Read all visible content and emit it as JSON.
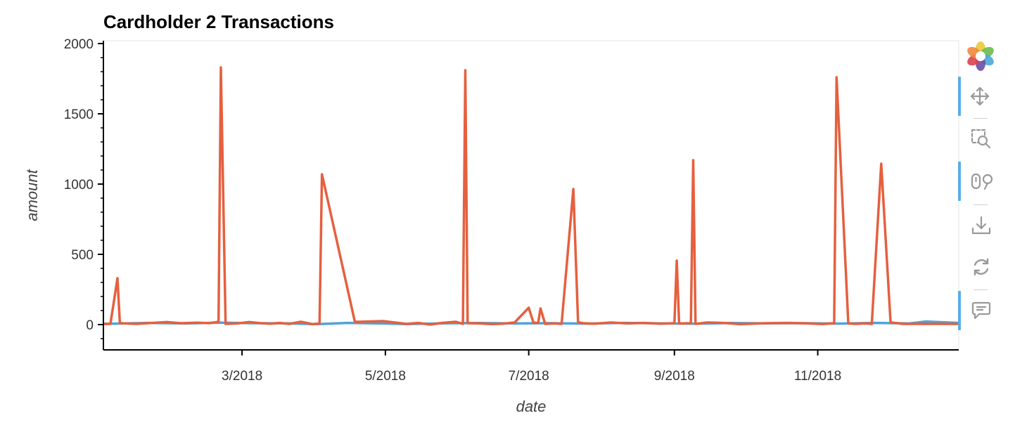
{
  "chart_data": {
    "type": "line",
    "title": "Cardholder 2 Transactions",
    "xlabel": "date",
    "ylabel": "amount",
    "x_ticks": [
      "3/2018",
      "5/2018",
      "7/2018",
      "9/2018",
      "11/2018"
    ],
    "y_ticks": [
      "0",
      "500",
      "1000",
      "1500",
      "2000"
    ],
    "xlim": [
      "2018-01-01",
      "2018-12-31"
    ],
    "ylim": [
      -180,
      2020
    ],
    "grid": false,
    "legend": "none",
    "series": [
      {
        "color": "#4fa3d8",
        "x": [
          "2018-01-01",
          "2018-01-20",
          "2018-02-05",
          "2018-02-20",
          "2018-03-05",
          "2018-03-20",
          "2018-04-02",
          "2018-04-15",
          "2018-04-30",
          "2018-05-10",
          "2018-05-25",
          "2018-06-10",
          "2018-06-25",
          "2018-07-10",
          "2018-07-25",
          "2018-08-10",
          "2018-08-25",
          "2018-09-10",
          "2018-09-25",
          "2018-10-10",
          "2018-10-25",
          "2018-11-10",
          "2018-11-25",
          "2018-12-10",
          "2018-12-17",
          "2018-12-31"
        ],
        "values": [
          5,
          12,
          8,
          14,
          10,
          9,
          3,
          12,
          8,
          4,
          9,
          11,
          8,
          10,
          7,
          12,
          9,
          6,
          11,
          9,
          10,
          7,
          12,
          8,
          22,
          12
        ]
      },
      {
        "color": "#e5603f",
        "x": [
          "2018-01-01",
          "2018-01-04",
          "2018-01-07",
          "2018-01-08",
          "2018-01-15",
          "2018-01-22",
          "2018-01-28",
          "2018-02-03",
          "2018-02-10",
          "2018-02-15",
          "2018-02-19",
          "2018-02-20",
          "2018-02-22",
          "2018-02-27",
          "2018-03-04",
          "2018-03-09",
          "2018-03-13",
          "2018-03-17",
          "2018-03-21",
          "2018-03-26",
          "2018-03-31",
          "2018-04-03",
          "2018-04-04",
          "2018-04-18",
          "2018-04-20",
          "2018-04-30",
          "2018-05-10",
          "2018-05-15",
          "2018-05-20",
          "2018-05-25",
          "2018-05-31",
          "2018-06-03",
          "2018-06-04",
          "2018-06-05",
          "2018-06-10",
          "2018-06-15",
          "2018-06-20",
          "2018-06-25",
          "2018-07-01",
          "2018-07-03",
          "2018-07-05",
          "2018-07-06",
          "2018-07-08",
          "2018-07-12",
          "2018-07-15",
          "2018-07-20",
          "2018-07-22",
          "2018-07-24",
          "2018-07-29",
          "2018-08-05",
          "2018-08-12",
          "2018-08-19",
          "2018-08-26",
          "2018-09-01",
          "2018-09-02",
          "2018-09-03",
          "2018-09-08",
          "2018-09-09",
          "2018-09-10",
          "2018-09-15",
          "2018-09-22",
          "2018-09-29",
          "2018-10-10",
          "2018-10-20",
          "2018-10-28",
          "2018-11-03",
          "2018-11-08",
          "2018-11-09",
          "2018-11-14",
          "2018-11-17",
          "2018-11-21",
          "2018-11-24",
          "2018-11-28",
          "2018-12-02",
          "2018-12-06",
          "2018-12-07",
          "2018-12-12",
          "2018-12-20",
          "2018-12-31"
        ],
        "values": [
          5,
          5,
          330,
          10,
          5,
          12,
          18,
          10,
          14,
          10,
          20,
          1830,
          5,
          8,
          18,
          10,
          6,
          12,
          5,
          20,
          3,
          8,
          1070,
          20,
          20,
          25,
          5,
          12,
          0,
          12,
          20,
          5,
          1810,
          10,
          8,
          4,
          6,
          15,
          120,
          15,
          10,
          115,
          5,
          8,
          5,
          965,
          18,
          10,
          6,
          15,
          8,
          12,
          6,
          10,
          455,
          8,
          10,
          1170,
          5,
          15,
          12,
          3,
          10,
          12,
          8,
          4,
          10,
          1760,
          8,
          5,
          8,
          5,
          1145,
          15,
          8,
          5,
          5,
          5,
          5
        ]
      }
    ]
  },
  "toolbar": {
    "tools": [
      "bokeh-logo",
      "pan-tool",
      "box-zoom-tool",
      "wheel-zoom-tool",
      "save-tool",
      "reset-tool",
      "hover-tool"
    ]
  }
}
